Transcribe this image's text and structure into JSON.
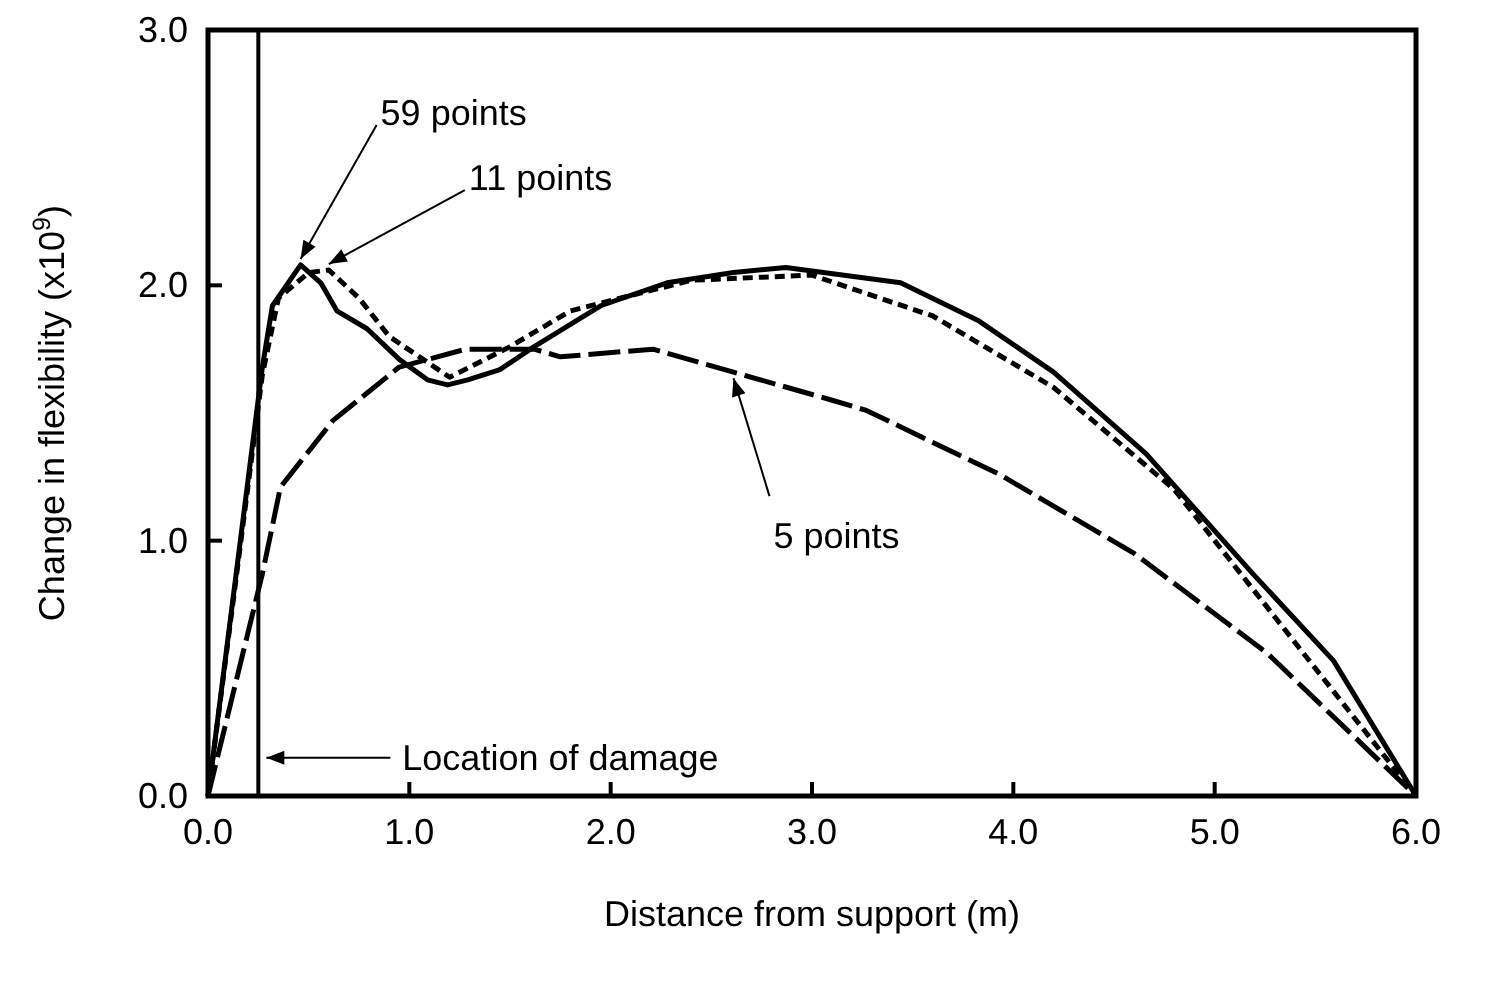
{
  "chart_data": {
    "type": "line",
    "xlabel": "Distance from support (m)",
    "ylabel": "Change in flexibility (x10$^{9}$)",
    "xlim": [
      0,
      6
    ],
    "ylim": [
      0,
      3
    ],
    "xticks": [
      {
        "value": 0,
        "label": "0.0"
      },
      {
        "value": 1,
        "label": "1.0"
      },
      {
        "value": 2,
        "label": "2.0"
      },
      {
        "value": 3,
        "label": "3.0"
      },
      {
        "value": 4,
        "label": "4.0"
      },
      {
        "value": 5,
        "label": "5.0"
      },
      {
        "value": 6,
        "label": "6.0"
      }
    ],
    "yticks": [
      {
        "value": 0,
        "label": "0.0"
      },
      {
        "value": 1,
        "label": "1.0"
      },
      {
        "value": 2,
        "label": "2.0"
      },
      {
        "value": 3,
        "label": "3.0"
      }
    ],
    "grid": false,
    "marker": "none",
    "series": [
      {
        "name": "59 points",
        "color": "#000000",
        "line_style": "solid",
        "x": [
          0,
          0.27,
          0.32,
          0.46,
          0.56,
          0.64,
          0.79,
          0.95,
          1.09,
          1.19,
          1.29,
          1.45,
          1.62,
          1.95,
          2.28,
          2.61,
          2.87,
          3.44,
          3.83,
          4.2,
          4.66,
          5.19,
          5.59,
          6
        ],
        "values": [
          0,
          1.68,
          1.92,
          2.08,
          2.01,
          1.9,
          1.83,
          1.71,
          1.63,
          1.61,
          1.63,
          1.67,
          1.76,
          1.92,
          2.01,
          2.05,
          2.07,
          2.01,
          1.86,
          1.66,
          1.34,
          0.87,
          0.53,
          0
        ]
      },
      {
        "name": "11 points",
        "color": "#000000",
        "line_style": "dotted",
        "x": [
          0,
          0.27,
          0.35,
          0.5,
          0.6,
          0.75,
          0.9,
          1.2,
          1.5,
          1.8,
          2.4,
          3,
          3.6,
          4.2,
          4.8,
          5.4,
          6
        ],
        "values": [
          0,
          1.65,
          1.95,
          2.05,
          2.06,
          1.95,
          1.8,
          1.64,
          1.76,
          1.9,
          2.02,
          2.04,
          1.88,
          1.6,
          1.2,
          0.6,
          0
        ]
      },
      {
        "name": "5 points",
        "color": "#000000",
        "line_style": "dashed",
        "x": [
          0,
          0.27,
          0.36,
          0.62,
          0.95,
          1.28,
          1.62,
          1.75,
          2.21,
          2.61,
          3.1,
          3.27,
          3.93,
          4.6,
          5.26,
          6
        ],
        "values": [
          0,
          0.87,
          1.21,
          1.47,
          1.68,
          1.75,
          1.75,
          1.72,
          1.75,
          1.66,
          1.55,
          1.51,
          1.26,
          0.95,
          0.56,
          0
        ]
      }
    ],
    "ref_lines": [
      {
        "axis": "x",
        "value": 0.25,
        "label": "Location of damage",
        "color": "#000000"
      }
    ]
  }
}
